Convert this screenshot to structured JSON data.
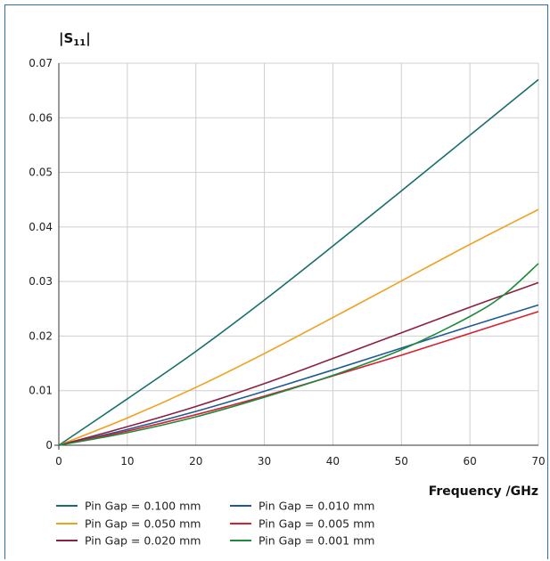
{
  "chart_data": {
    "type": "line",
    "ylabel": "|S11|",
    "xlabel": "Frequency /GHz",
    "xlim": [
      0,
      70
    ],
    "ylim": [
      0,
      0.07
    ],
    "xticks": [
      "0",
      "10",
      "20",
      "30",
      "40",
      "50",
      "60",
      "70"
    ],
    "yticks": [
      "0",
      "0.01",
      "0.02",
      "0.03",
      "0.04",
      "0.05",
      "0.06",
      "0.07"
    ],
    "grid": true,
    "legend_position": "bottom",
    "series": [
      {
        "name": "Pin Gap = 0.100 mm",
        "color": "#1a6e6a",
        "x": [
          0,
          10,
          20,
          30,
          40,
          50,
          60,
          70
        ],
        "y": [
          0,
          0.0085,
          0.0172,
          0.0266,
          0.0365,
          0.0466,
          0.0568,
          0.067
        ]
      },
      {
        "name": "Pin Gap = 0.010 mm",
        "color": "#1f5a98",
        "x": [
          0,
          10,
          20,
          30,
          40,
          50,
          60,
          70
        ],
        "y": [
          0,
          0.0029,
          0.0062,
          0.0099,
          0.0138,
          0.0178,
          0.0218,
          0.0257
        ]
      },
      {
        "name": "Pin Gap = 0.050 mm",
        "color": "#f0a020",
        "x": [
          0,
          10,
          20,
          30,
          40,
          50,
          60,
          70
        ],
        "y": [
          0,
          0.005,
          0.0106,
          0.0168,
          0.0234,
          0.0301,
          0.0368,
          0.0432
        ]
      },
      {
        "name": "Pin Gap = 0.005 mm",
        "color": "#d62030",
        "x": [
          0,
          10,
          20,
          30,
          40,
          50,
          60,
          70
        ],
        "y": [
          0,
          0.0026,
          0.0056,
          0.009,
          0.0127,
          0.0165,
          0.0205,
          0.0245
        ]
      },
      {
        "name": "Pin Gap = 0.020 mm",
        "color": "#8b2140",
        "x": [
          0,
          10,
          20,
          30,
          40,
          50,
          60,
          70
        ],
        "y": [
          0,
          0.0034,
          0.0071,
          0.0113,
          0.0159,
          0.0206,
          0.0253,
          0.0298
        ]
      },
      {
        "name": "Pin Gap = 0.001 mm",
        "color": "#1e8a3c",
        "x": [
          0,
          10,
          20,
          30,
          40,
          50,
          60,
          65,
          70
        ],
        "y": [
          0,
          0.0023,
          0.0052,
          0.0088,
          0.0128,
          0.0175,
          0.0236,
          0.0276,
          0.0333
        ]
      }
    ]
  }
}
